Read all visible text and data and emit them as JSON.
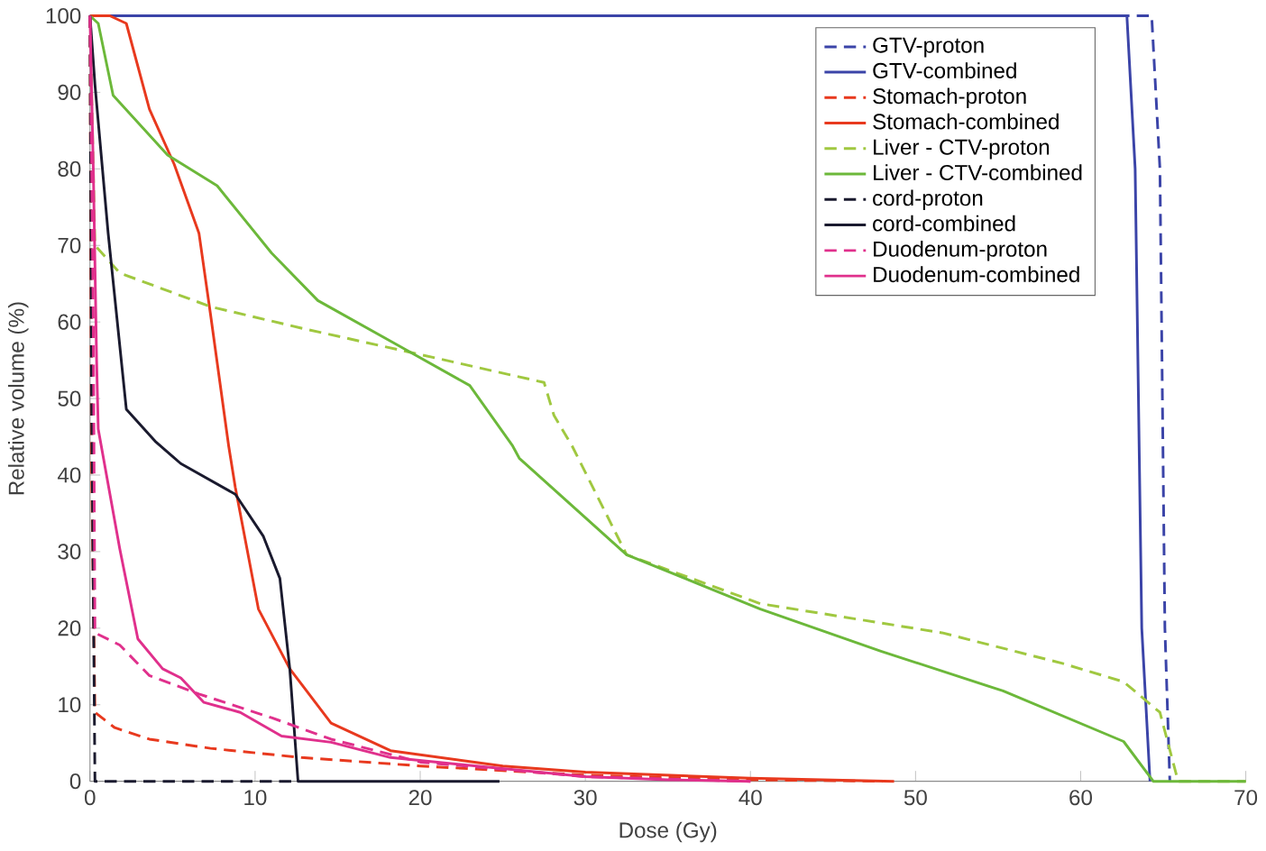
{
  "chart_data": {
    "type": "line",
    "xlabel": "Dose (Gy)",
    "ylabel": "Relative volume (%)",
    "xlim": [
      0,
      70
    ],
    "ylim": [
      0,
      100
    ],
    "xticks": [
      0,
      10,
      20,
      30,
      40,
      50,
      60,
      70
    ],
    "yticks": [
      0,
      10,
      20,
      30,
      40,
      50,
      60,
      70,
      80,
      90,
      100
    ],
    "grid": false,
    "legend": "top right",
    "marker": "none",
    "series": [
      {
        "name": "GTV-proton",
        "color": "#3b44a8",
        "line_style": "dashed",
        "x": [
          0,
          64.3,
          64.8,
          65.1,
          65.4
        ],
        "values": [
          100,
          100,
          80,
          20,
          0
        ]
      },
      {
        "name": "GTV-combined",
        "color": "#3b44a8",
        "line_style": "solid",
        "x": [
          0,
          62.8,
          63.3,
          63.7,
          64.2
        ],
        "values": [
          100,
          100,
          80,
          20,
          0
        ]
      },
      {
        "name": "Stomach-proton",
        "color": "#e8391e",
        "line_style": "dashed",
        "x": [
          0,
          0.1,
          0.3,
          1.5,
          3.6,
          7.3,
          12.8,
          20,
          30,
          40,
          48
        ],
        "values": [
          100,
          40,
          9,
          7,
          5.5,
          4.3,
          3.1,
          2,
          0.8,
          0.2,
          0
        ]
      },
      {
        "name": "Stomach-combined",
        "color": "#e8391e",
        "line_style": "solid",
        "x": [
          0,
          1.2,
          2.2,
          3.6,
          5.1,
          6.6,
          7.3,
          8.4,
          8.8,
          10.2,
          12.1,
          14.6,
          18.2,
          25,
          30,
          40,
          48.7
        ],
        "values": [
          100,
          100,
          99,
          87.8,
          80.6,
          71.6,
          61,
          43.8,
          38.4,
          22.5,
          14.7,
          7.6,
          4,
          2,
          1.2,
          0.4,
          0
        ]
      },
      {
        "name": "Liver - CTV-proton",
        "color": "#a0c840",
        "line_style": "dashed",
        "x": [
          0,
          0.3,
          1.8,
          7.3,
          12.8,
          20.1,
          27.5,
          28.1,
          29.2,
          32.5,
          40.6,
          51.6,
          58.9,
          62.6,
          64.8,
          65.9,
          70
        ],
        "values": [
          100,
          70,
          66.4,
          62,
          59.2,
          55.7,
          52.1,
          47.8,
          43.8,
          29.6,
          23.2,
          19.4,
          15.4,
          13,
          9,
          0,
          0
        ]
      },
      {
        "name": "Liver - CTV-combined",
        "color": "#6cb83a",
        "line_style": "solid",
        "x": [
          0,
          0.5,
          1.4,
          4.7,
          7.7,
          11,
          13.8,
          18.7,
          23,
          25.6,
          26,
          32.5,
          40.6,
          47.9,
          55.3,
          62.6,
          64.4,
          70
        ],
        "values": [
          100,
          99,
          89.6,
          81.8,
          77.8,
          69,
          62.8,
          56.9,
          51.7,
          43.8,
          42.2,
          29.6,
          22.5,
          17,
          11.8,
          5.2,
          0,
          0
        ]
      },
      {
        "name": "cord-proton",
        "color": "#1a1a2e",
        "line_style": "dashed",
        "x": [
          0,
          0.1,
          0.3,
          12.5
        ],
        "values": [
          100,
          50,
          0,
          0
        ]
      },
      {
        "name": "cord-combined",
        "color": "#1a1a2e",
        "line_style": "solid",
        "x": [
          0,
          0.3,
          1.1,
          2.2,
          4,
          5.5,
          8.8,
          10.5,
          11.5,
          12.1,
          12.6,
          24.8
        ],
        "values": [
          100,
          91,
          71.6,
          48.6,
          44.3,
          41.5,
          37.5,
          32,
          26.5,
          14.7,
          0,
          0
        ]
      },
      {
        "name": "Duodenum-proton",
        "color": "#e0308c",
        "line_style": "dashed",
        "x": [
          0,
          0.2,
          0.3,
          1.8,
          3.6,
          6.6,
          11,
          14.6,
          20,
          30,
          40
        ],
        "values": [
          100,
          60,
          19.4,
          17.8,
          13.8,
          11.4,
          8.3,
          5.5,
          2.5,
          0.6,
          0
        ]
      },
      {
        "name": "Duodenum-combined",
        "color": "#e0308c",
        "line_style": "solid",
        "x": [
          0,
          0.2,
          0.4,
          0.5,
          1.8,
          2.9,
          4.4,
          5.5,
          6.9,
          9.1,
          11.6,
          14.6,
          18.2,
          30,
          35,
          40
        ],
        "values": [
          100,
          80,
          55,
          46,
          30.4,
          18.6,
          14.7,
          13.5,
          10.3,
          9,
          5.9,
          5.1,
          3.1,
          0.6,
          0.2,
          0
        ]
      }
    ]
  }
}
